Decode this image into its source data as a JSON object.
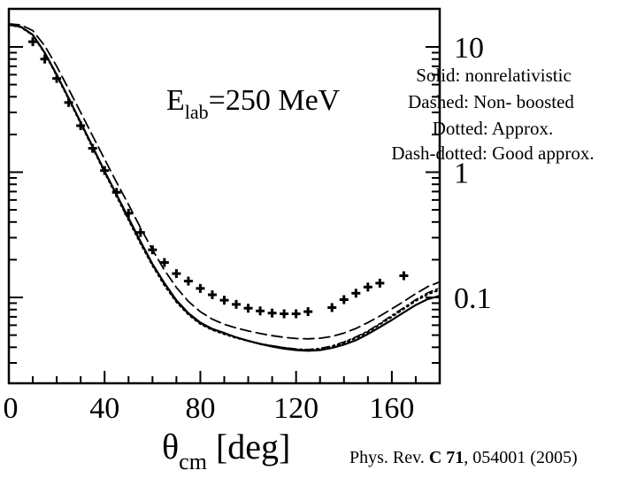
{
  "chart_data": {
    "type": "line",
    "x_axis": {
      "range": [
        0,
        180
      ],
      "ticks": [
        0,
        40,
        80,
        120,
        160
      ],
      "label_symbol": "θ",
      "label_subscript": "cm",
      "label_unit": "[deg]"
    },
    "y_axis": {
      "scale": "log",
      "range": [
        0.03,
        15
      ],
      "tick_labels": [
        {
          "value": 10,
          "text": "10"
        },
        {
          "value": 1,
          "text": "1"
        },
        {
          "value": 0.1,
          "text": "0.1"
        }
      ],
      "side": "right"
    },
    "energy_label": {
      "prefix": "E",
      "subscript": "lab",
      "suffix": "=250 MeV"
    },
    "legend_lines": [
      "Solid: nonrelativistic",
      "Dashed: Non- boosted",
      "Dotted: Approx.",
      "Dash-dotted: Good approx."
    ],
    "citation": {
      "prefix": "Phys. Rev. ",
      "journal": "C",
      "volume": "71",
      "suffix": ", 054001 (2005)"
    },
    "series": [
      {
        "style": "solid",
        "x": [
          0,
          5,
          10,
          15,
          20,
          25,
          30,
          35,
          40,
          45,
          50,
          55,
          60,
          65,
          70,
          75,
          80,
          85,
          90,
          95,
          100,
          105,
          110,
          115,
          120,
          125,
          130,
          135,
          140,
          145,
          150,
          155,
          160,
          165,
          170,
          175,
          180
        ],
        "y": [
          15,
          14.5,
          12.5,
          9.0,
          6.0,
          3.9,
          2.5,
          1.6,
          1.02,
          0.66,
          0.43,
          0.28,
          0.185,
          0.13,
          0.095,
          0.075,
          0.063,
          0.056,
          0.052,
          0.048,
          0.045,
          0.0425,
          0.0405,
          0.039,
          0.038,
          0.0375,
          0.038,
          0.0395,
          0.042,
          0.0455,
          0.051,
          0.058,
          0.066,
          0.076,
          0.087,
          0.097,
          0.103
        ]
      },
      {
        "style": "dashed",
        "x": [
          0,
          5,
          10,
          15,
          20,
          25,
          30,
          35,
          40,
          45,
          50,
          55,
          60,
          65,
          70,
          75,
          80,
          85,
          90,
          95,
          100,
          105,
          110,
          115,
          120,
          125,
          130,
          135,
          140,
          145,
          150,
          155,
          160,
          165,
          170,
          175,
          180
        ],
        "y": [
          15.3,
          15.0,
          13.5,
          10.2,
          7.0,
          4.6,
          3.0,
          1.95,
          1.27,
          0.83,
          0.55,
          0.36,
          0.24,
          0.165,
          0.12,
          0.093,
          0.077,
          0.067,
          0.061,
          0.057,
          0.054,
          0.0515,
          0.0495,
          0.048,
          0.047,
          0.0467,
          0.0472,
          0.0488,
          0.052,
          0.0565,
          0.063,
          0.071,
          0.081,
          0.093,
          0.107,
          0.122,
          0.133
        ]
      },
      {
        "style": "dotted",
        "x": [
          0,
          5,
          10,
          15,
          20,
          25,
          30,
          35,
          40,
          45,
          50,
          55,
          60,
          65,
          70,
          75,
          80,
          85,
          90,
          95,
          100,
          105,
          110,
          115,
          120,
          125,
          130,
          135,
          140,
          145,
          150,
          155,
          160,
          165,
          170,
          175,
          180
        ],
        "y": [
          15,
          14.4,
          12.4,
          8.9,
          5.9,
          3.85,
          2.45,
          1.57,
          1.0,
          0.64,
          0.415,
          0.27,
          0.18,
          0.125,
          0.092,
          0.073,
          0.0615,
          0.055,
          0.051,
          0.0475,
          0.045,
          0.0425,
          0.041,
          0.0395,
          0.0385,
          0.038,
          0.0388,
          0.0405,
          0.0435,
          0.0475,
          0.053,
          0.061,
          0.07,
          0.081,
          0.094,
          0.106,
          0.115
        ]
      },
      {
        "style": "dash-dotted",
        "x": [
          0,
          5,
          10,
          15,
          20,
          25,
          30,
          35,
          40,
          45,
          50,
          55,
          60,
          65,
          70,
          75,
          80,
          85,
          90,
          95,
          100,
          105,
          110,
          115,
          120,
          125,
          130,
          135,
          140,
          145,
          150,
          155,
          160,
          165,
          170,
          175,
          180
        ],
        "y": [
          15,
          14.45,
          12.45,
          8.95,
          5.95,
          3.88,
          2.48,
          1.58,
          1.01,
          0.65,
          0.42,
          0.275,
          0.182,
          0.127,
          0.093,
          0.074,
          0.062,
          0.0555,
          0.0515,
          0.048,
          0.0452,
          0.0428,
          0.0412,
          0.0398,
          0.0388,
          0.0384,
          0.0392,
          0.041,
          0.0442,
          0.0484,
          0.054,
          0.062,
          0.072,
          0.083,
          0.096,
          0.109,
          0.119
        ]
      }
    ],
    "data_points": {
      "x": [
        10,
        15,
        20,
        25,
        30,
        35,
        40,
        45,
        50,
        55,
        60,
        65,
        70,
        75,
        80,
        85,
        90,
        95,
        100,
        105,
        110,
        115,
        120,
        125,
        135,
        140,
        145,
        150,
        155,
        165
      ],
      "y": [
        11,
        8.0,
        5.6,
        3.6,
        2.35,
        1.55,
        1.03,
        0.69,
        0.47,
        0.33,
        0.24,
        0.19,
        0.155,
        0.135,
        0.118,
        0.105,
        0.095,
        0.088,
        0.082,
        0.078,
        0.075,
        0.074,
        0.074,
        0.077,
        0.083,
        0.096,
        0.108,
        0.121,
        0.13,
        0.149
      ]
    }
  }
}
